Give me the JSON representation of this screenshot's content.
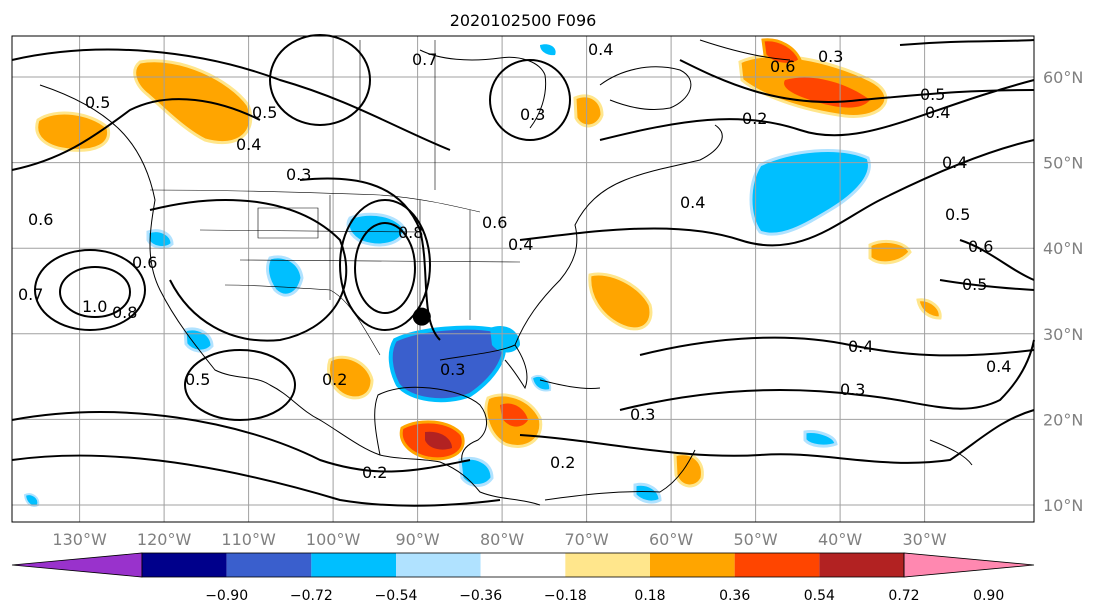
{
  "title": "2020102500 F096",
  "lon_labels": [
    "130°W",
    "120°W",
    "110°W",
    "100°W",
    "90°W",
    "80°W",
    "70°W",
    "60°W",
    "50°W",
    "40°W",
    "30°W"
  ],
  "lat_labels": [
    "60°N",
    "50°N",
    "40°N",
    "30°N",
    "20°N",
    "10°N"
  ],
  "colorbar": {
    "colors": [
      "#9932cc",
      "#00008b",
      "#3a5fcd",
      "#00bfff",
      "#b0e2ff",
      "#ffffff",
      "#ffe68c",
      "#ffa500",
      "#ff4500",
      "#b22222",
      "#ff88b0"
    ],
    "tick_labels": [
      "−0.90",
      "−0.72",
      "−0.54",
      "−0.36",
      "−0.18",
      "0.18",
      "0.36",
      "0.54",
      "0.72",
      "0.90"
    ]
  },
  "contour_labels": [
    "0.5",
    "0.5",
    "0.4",
    "0.3",
    "0.6",
    "0.6",
    "1.0",
    "0.8",
    "0.7",
    "0.5",
    "0.2",
    "0.7",
    "0.8",
    "0.6",
    "0.4",
    "0.3",
    "0.4",
    "0.3",
    "0.2",
    "0.6",
    "0.3",
    "0.4",
    "0.2",
    "0.5",
    "0.4",
    "0.4",
    "0.5",
    "0.6",
    "0.5",
    "0.4",
    "0.3",
    "0.4",
    "0.3",
    "0.2"
  ],
  "marker": {
    "lon": -89.5,
    "lat": 32.0
  }
}
